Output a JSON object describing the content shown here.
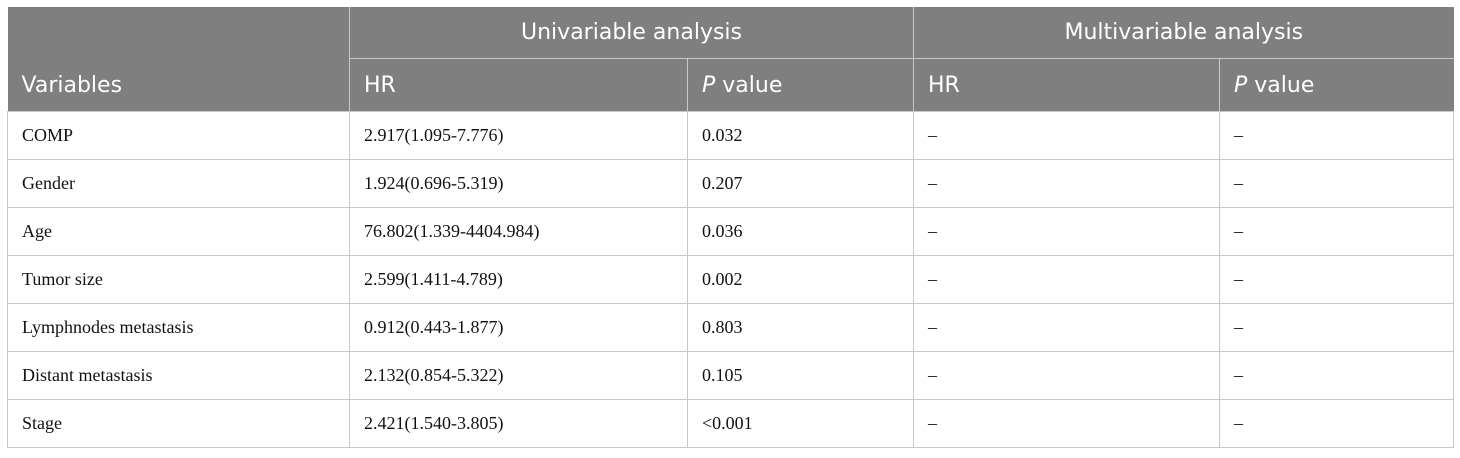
{
  "header": {
    "variables": "Variables",
    "univariable_group": "Univariable analysis",
    "multivariable_group": "Multivariable analysis",
    "hr": "HR",
    "p_letter": "P",
    "p_suffix": " value"
  },
  "rows": [
    {
      "variable": "COMP",
      "uni_hr": "2.917(1.095-7.776)",
      "uni_p": "0.032",
      "multi_hr": "–",
      "multi_p": "–"
    },
    {
      "variable": "Gender",
      "uni_hr": "1.924(0.696-5.319)",
      "uni_p": "0.207",
      "multi_hr": "–",
      "multi_p": "–"
    },
    {
      "variable": "Age",
      "uni_hr": "76.802(1.339-4404.984)",
      "uni_p": "0.036",
      "multi_hr": "–",
      "multi_p": "–"
    },
    {
      "variable": "Tumor size",
      "uni_hr": "2.599(1.411-4.789)",
      "uni_p": "0.002",
      "multi_hr": "–",
      "multi_p": "–"
    },
    {
      "variable": "Lymphnodes metastasis",
      "uni_hr": "0.912(0.443-1.877)",
      "uni_p": "0.803",
      "multi_hr": "–",
      "multi_p": "–"
    },
    {
      "variable": "Distant metastasis",
      "uni_hr": "2.132(0.854-5.322)",
      "uni_p": "0.105",
      "multi_hr": "–",
      "multi_p": "–"
    },
    {
      "variable": "Stage",
      "uni_hr": "2.421(1.540-3.805)",
      "uni_p": "<0.001",
      "multi_hr": "–",
      "multi_p": "–"
    }
  ]
}
